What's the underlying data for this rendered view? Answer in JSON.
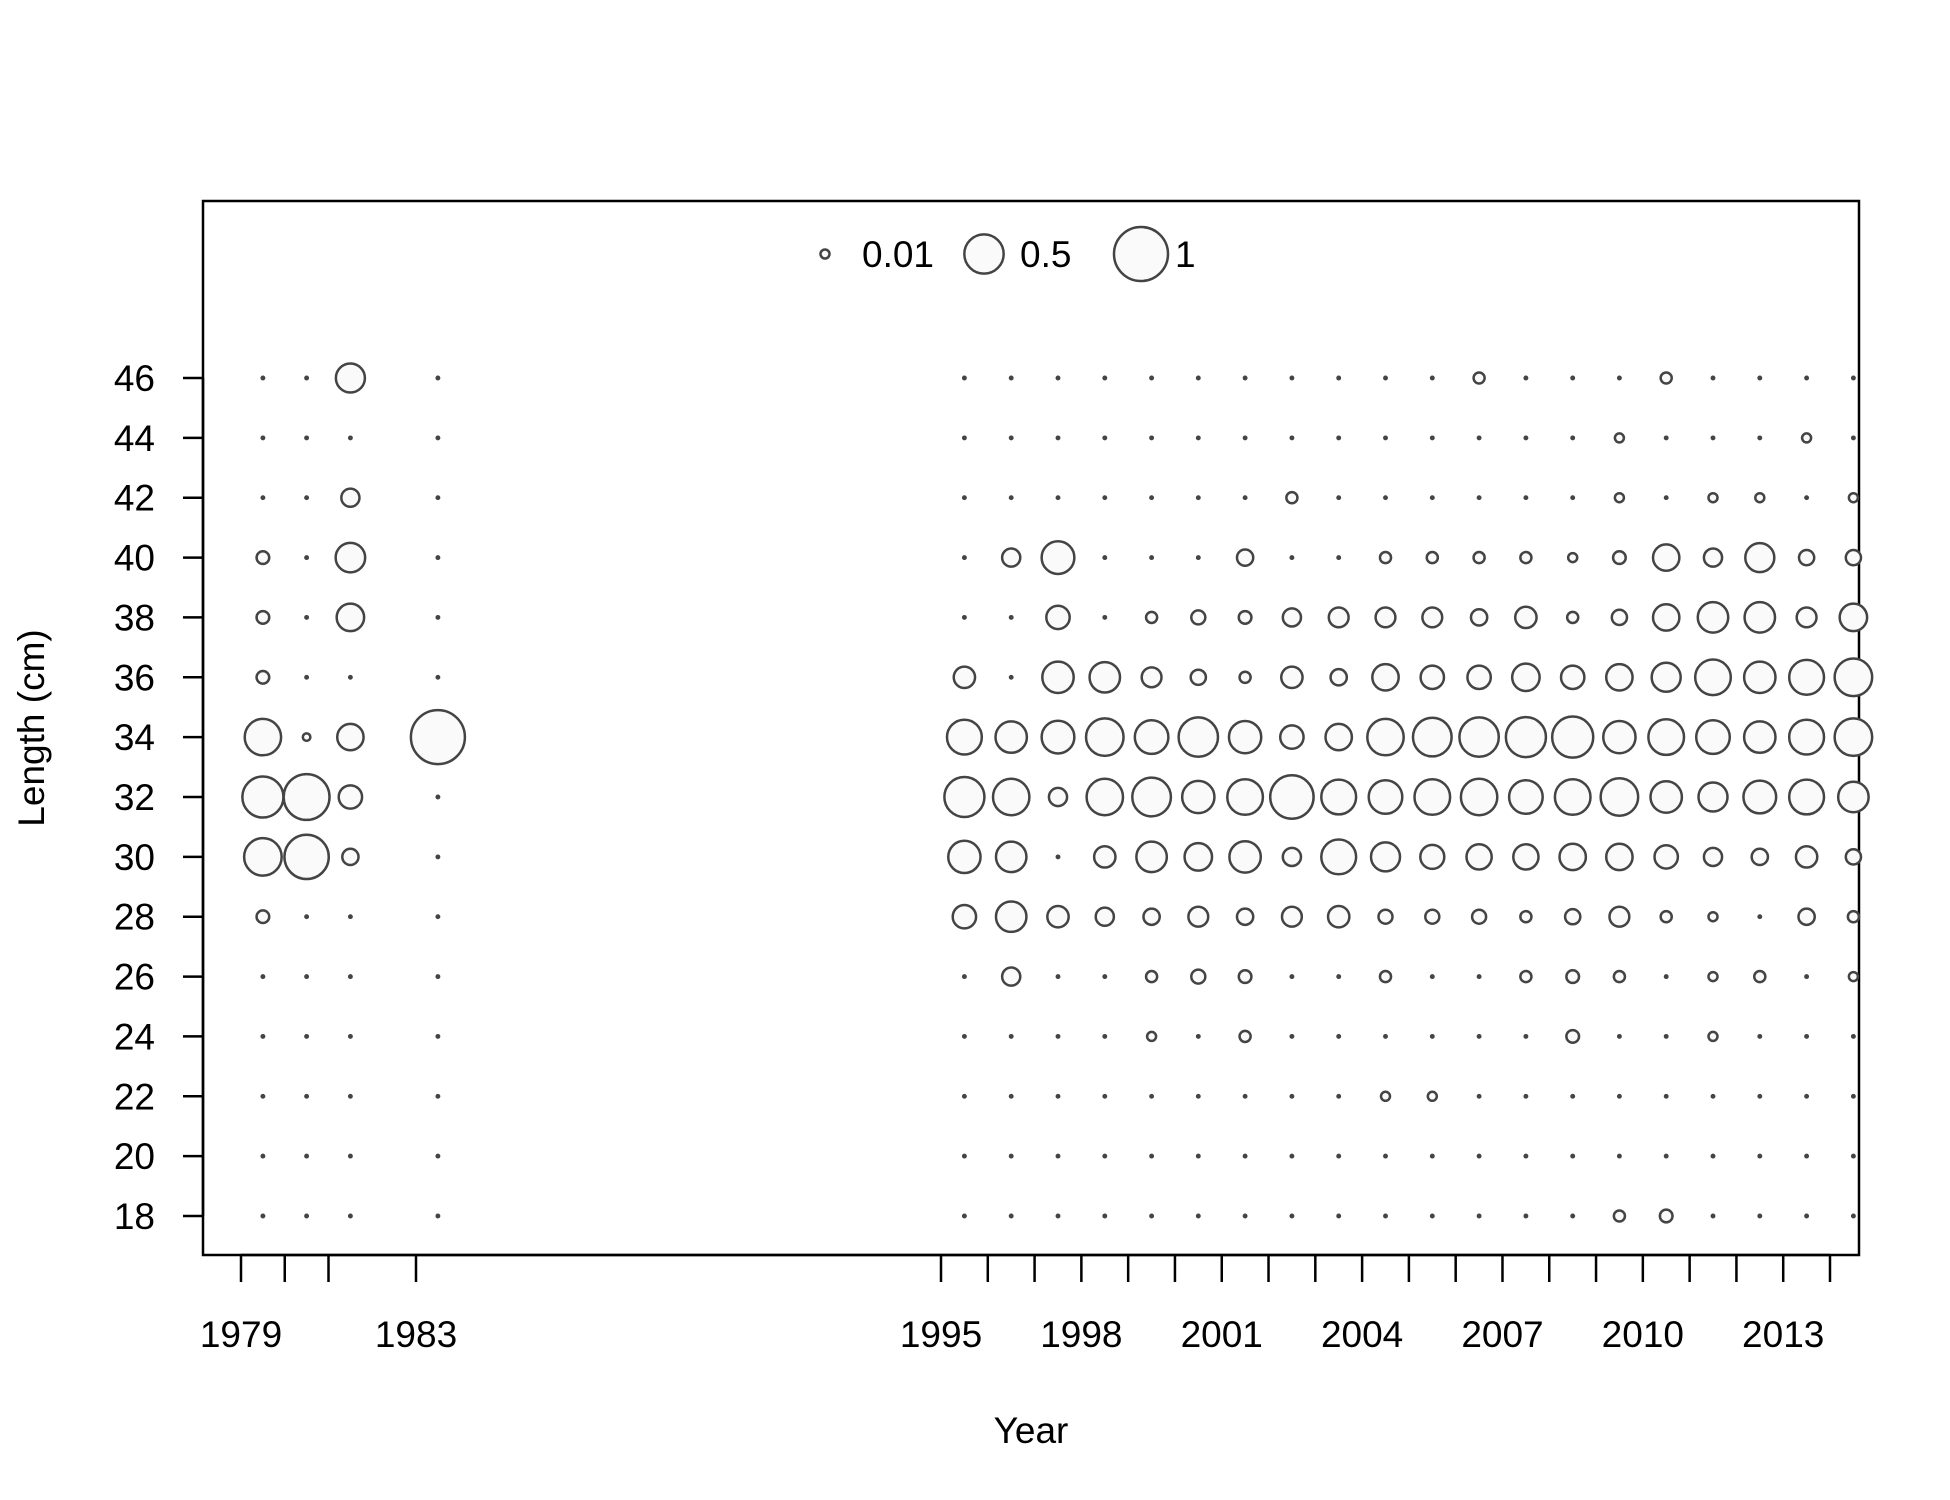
{
  "chart_data": {
    "type": "scatter",
    "subtype": "bubble",
    "xlabel": "Year",
    "ylabel": "Length (cm)",
    "x_tick_labels": [
      "1979",
      "1983",
      "1995",
      "1998",
      "2001",
      "2004",
      "2007",
      "2010",
      "2013"
    ],
    "x_minor_ticks": [
      1979,
      1980,
      1981,
      1983,
      1995,
      1996,
      1997,
      1998,
      1999,
      2000,
      2001,
      2002,
      2003,
      2004,
      2005,
      2006,
      2007,
      2008,
      2009,
      2010,
      2011,
      2012,
      2013,
      2014
    ],
    "y_ticks": [
      18,
      20,
      22,
      24,
      26,
      28,
      30,
      32,
      34,
      36,
      38,
      40,
      42,
      44,
      46
    ],
    "legend": {
      "placement": "top-center",
      "entries": [
        {
          "label": "0.01",
          "value": 0.01
        },
        {
          "label": "0.5",
          "value": 0.5
        },
        {
          "label": "1",
          "value": 1
        }
      ]
    },
    "lengths": [
      18,
      20,
      22,
      24,
      26,
      28,
      30,
      32,
      34,
      36,
      38,
      40,
      42,
      44,
      46
    ],
    "years": [
      1979.5,
      1980.5,
      1981.5,
      1983.5,
      1995.5,
      1996.5,
      1997.5,
      1998.5,
      1999.5,
      2000.5,
      2001.5,
      2002.5,
      2003.5,
      2004.5,
      2005.5,
      2006.5,
      2007.5,
      2008.5,
      2009.5,
      2010.5,
      2011.5,
      2012.5,
      2013.5,
      2014.5
    ],
    "values": [
      [
        0,
        0,
        0,
        0,
        0,
        0.03,
        0.45,
        0.55,
        0.42,
        0.03,
        0.03,
        0.03,
        0,
        0,
        0
      ],
      [
        0,
        0,
        0,
        0,
        0,
        0,
        0.65,
        0.7,
        0.005,
        0,
        0,
        0,
        0,
        0,
        0
      ],
      [
        0,
        0,
        0,
        0,
        0,
        0,
        0.06,
        0.15,
        0.2,
        0,
        0.22,
        0.26,
        0.08,
        0,
        0.25
      ],
      [
        0,
        0,
        0,
        0,
        0,
        0,
        0,
        0,
        1.0,
        0,
        0,
        0,
        0,
        0,
        0
      ],
      [
        0,
        0,
        0,
        0,
        0,
        0.15,
        0.32,
        0.52,
        0.38,
        0.12,
        0,
        0,
        0,
        0,
        0
      ],
      [
        0,
        0,
        0,
        0,
        0.08,
        0.28,
        0.28,
        0.42,
        0.3,
        0,
        0,
        0.08,
        0,
        0,
        0
      ],
      [
        0,
        0,
        0,
        0,
        0,
        0.12,
        0,
        0.08,
        0.33,
        0.3,
        0.15,
        0.33,
        0,
        0,
        0
      ],
      [
        0,
        0,
        0,
        0,
        0,
        0.08,
        0.12,
        0.42,
        0.45,
        0.28,
        0,
        0,
        0,
        0,
        0
      ],
      [
        0,
        0,
        0,
        0.01,
        0.02,
        0.06,
        0.28,
        0.48,
        0.35,
        0.1,
        0.02,
        0,
        0,
        0,
        0
      ],
      [
        0,
        0,
        0,
        0,
        0.04,
        0.1,
        0.22,
        0.32,
        0.5,
        0.05,
        0.04,
        0,
        0,
        0,
        0
      ],
      [
        0,
        0,
        0,
        0.02,
        0.03,
        0.06,
        0.3,
        0.4,
        0.32,
        0.02,
        0.03,
        0.06,
        0,
        0,
        0
      ],
      [
        0,
        0,
        0,
        0,
        0,
        0.1,
        0.08,
        0.62,
        0.15,
        0.12,
        0.08,
        0,
        0.02,
        0,
        0
      ],
      [
        0,
        0,
        0,
        0,
        0,
        0.12,
        0.38,
        0.38,
        0.2,
        0.06,
        0.1,
        0,
        0,
        0,
        0
      ],
      [
        0,
        0,
        0.01,
        0,
        0.02,
        0.04,
        0.25,
        0.35,
        0.42,
        0.2,
        0.1,
        0.02,
        0,
        0,
        0
      ],
      [
        0,
        0,
        0.01,
        0,
        0,
        0.04,
        0.16,
        0.4,
        0.48,
        0.15,
        0.1,
        0.02,
        0,
        0,
        0
      ],
      [
        0,
        0,
        0,
        0,
        0,
        0.04,
        0.18,
        0.42,
        0.5,
        0.15,
        0.06,
        0.02,
        0,
        0,
        0.02
      ],
      [
        0,
        0,
        0,
        0,
        0.02,
        0.02,
        0.18,
        0.35,
        0.52,
        0.22,
        0.12,
        0.02,
        0,
        0,
        0
      ],
      [
        0,
        0,
        0,
        0.03,
        0.03,
        0.05,
        0.2,
        0.4,
        0.55,
        0.15,
        0.02,
        0.01,
        0,
        0,
        0
      ],
      [
        0.02,
        0,
        0,
        0,
        0.02,
        0.1,
        0.2,
        0.45,
        0.32,
        0.2,
        0.05,
        0.03,
        0.01,
        0.01,
        0
      ],
      [
        0.03,
        0,
        0,
        0,
        0,
        0.02,
        0.15,
        0.3,
        0.4,
        0.25,
        0.2,
        0.2,
        0,
        0,
        0.02
      ],
      [
        0,
        0,
        0,
        0.01,
        0.01,
        0.01,
        0.08,
        0.25,
        0.35,
        0.4,
        0.28,
        0.08,
        0.01,
        0,
        0
      ],
      [
        0,
        0,
        0,
        0,
        0.02,
        0,
        0.06,
        0.33,
        0.3,
        0.3,
        0.28,
        0.25,
        0.01,
        0,
        0
      ],
      [
        0,
        0,
        0,
        0,
        0,
        0.06,
        0.12,
        0.38,
        0.38,
        0.38,
        0.1,
        0.05,
        0,
        0.01,
        0
      ],
      [
        0,
        0,
        0,
        0,
        0.01,
        0.02,
        0.05,
        0.28,
        0.45,
        0.45,
        0.22,
        0.05,
        0.01,
        0,
        0
      ]
    ]
  }
}
